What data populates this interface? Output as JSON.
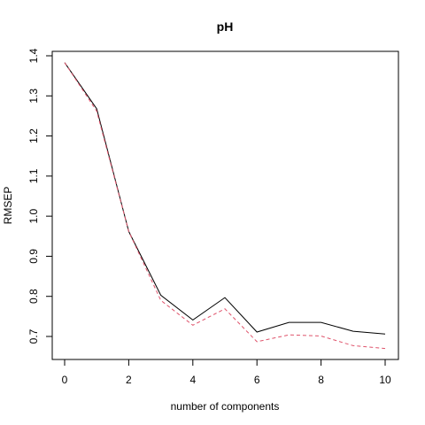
{
  "chart_data": {
    "type": "line",
    "title": "pH",
    "xlabel": "number of components",
    "ylabel": "RMSEP",
    "x": [
      0,
      1,
      2,
      3,
      4,
      5,
      6,
      7,
      8,
      9,
      10
    ],
    "xlim": [
      0,
      10
    ],
    "ylim": [
      0.66,
      1.4
    ],
    "x_ticks": [
      "0",
      "2",
      "4",
      "6",
      "8",
      "10"
    ],
    "y_ticks": [
      "0.7",
      "0.8",
      "0.9",
      "1.0",
      "1.1",
      "1.2",
      "1.3",
      "1.4"
    ],
    "grid": false,
    "legend": "none",
    "series": [
      {
        "values": [
          1.383,
          1.268,
          0.962,
          0.803,
          0.741,
          0.797,
          0.711,
          0.735,
          0.735,
          0.713,
          0.706
        ],
        "color": "#000000",
        "style": "solid"
      },
      {
        "values": [
          1.383,
          1.262,
          0.962,
          0.79,
          0.728,
          0.769,
          0.687,
          0.704,
          0.701,
          0.677,
          0.67
        ],
        "color": "#DF536B",
        "style": "dashed"
      }
    ]
  }
}
